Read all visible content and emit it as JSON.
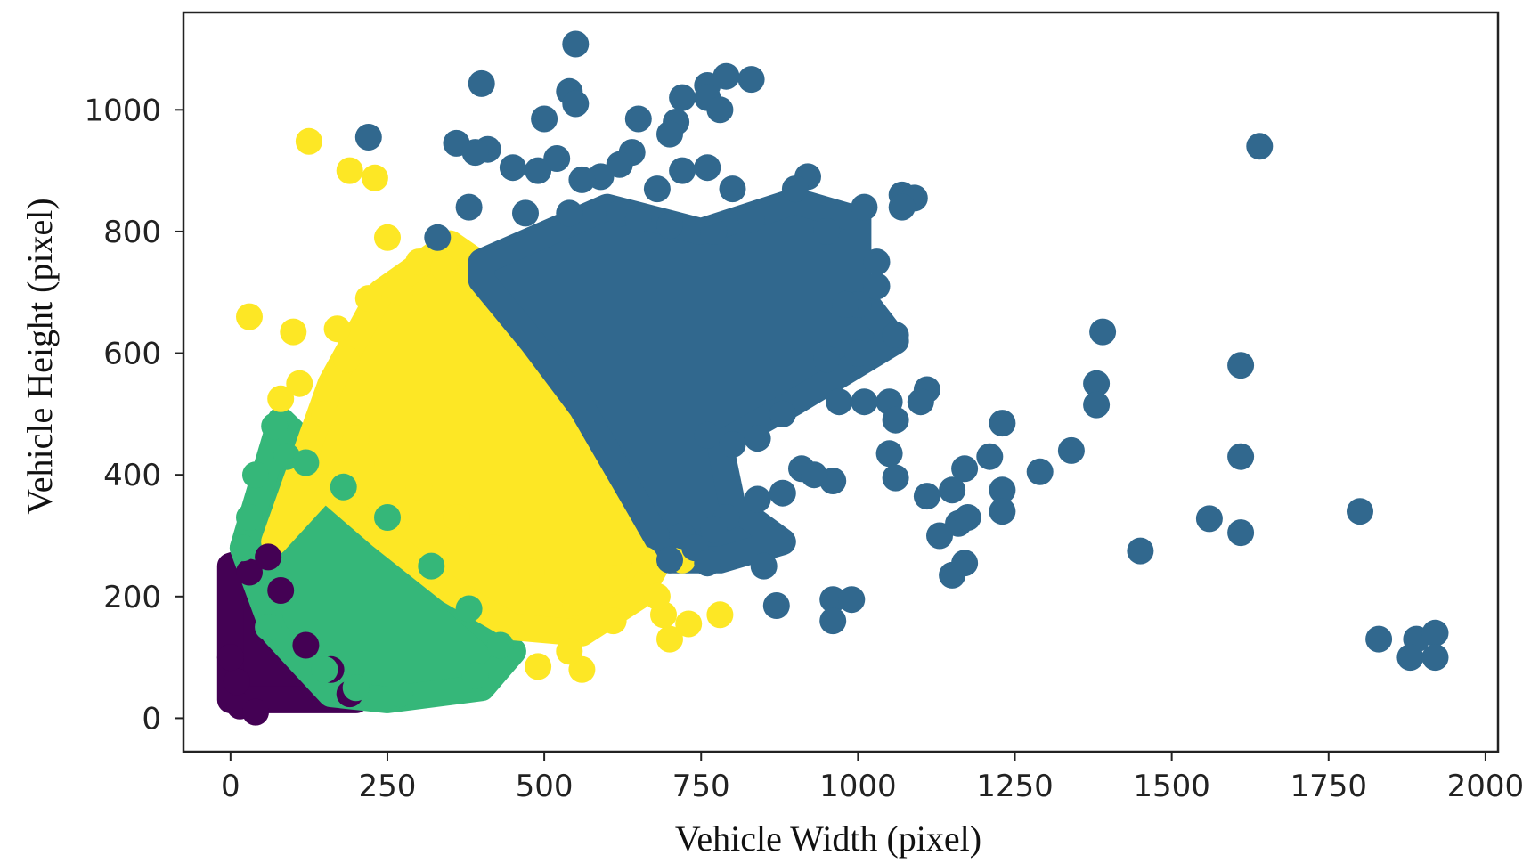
{
  "chart_data": {
    "type": "scatter",
    "title": "",
    "xlabel": "Vehicle Width (pixel)",
    "ylabel": "Vehicle Height (pixel)",
    "xlim": [
      -75,
      2020
    ],
    "ylim": [
      -55,
      1160
    ],
    "x_ticks": [
      0,
      250,
      500,
      750,
      1000,
      1250,
      1500,
      1750,
      2000
    ],
    "y_ticks": [
      0,
      200,
      400,
      600,
      800,
      1000
    ],
    "x_tick_labels": [
      "0",
      "250",
      "500",
      "750",
      "1000",
      "1250",
      "1500",
      "1750",
      "2000"
    ],
    "y_tick_labels": [
      "0",
      "200",
      "400",
      "600",
      "800",
      "1000"
    ],
    "grid": false,
    "legend": "none",
    "series": [
      {
        "color": "#440154",
        "shape": "triangle",
        "region": [
          [
            0,
            30
          ],
          [
            0,
            250
          ],
          [
            60,
            270
          ],
          [
            200,
            30
          ]
        ],
        "fill_estimate_count": 1200,
        "points": [
          [
            15,
            20
          ],
          [
            30,
            240
          ],
          [
            60,
            265
          ],
          [
            80,
            210
          ],
          [
            120,
            120
          ],
          [
            160,
            80
          ],
          [
            190,
            40
          ],
          [
            10,
            60
          ],
          [
            0,
            100
          ],
          [
            40,
            10
          ]
        ]
      },
      {
        "color": "#35b779",
        "shape": "band",
        "region": [
          [
            20,
            280
          ],
          [
            80,
            490
          ],
          [
            150,
            420
          ],
          [
            230,
            310
          ],
          [
            330,
            220
          ],
          [
            450,
            110
          ],
          [
            400,
            50
          ],
          [
            250,
            30
          ],
          [
            160,
            40
          ],
          [
            70,
            140
          ]
        ],
        "fill_estimate_count": 1600,
        "points": [
          [
            70,
            480
          ],
          [
            90,
            430
          ],
          [
            40,
            400
          ],
          [
            30,
            330
          ],
          [
            20,
            280
          ],
          [
            120,
            420
          ],
          [
            180,
            380
          ],
          [
            250,
            330
          ],
          [
            320,
            250
          ],
          [
            380,
            180
          ],
          [
            430,
            120
          ],
          [
            390,
            70
          ],
          [
            270,
            40
          ],
          [
            200,
            50
          ],
          [
            150,
            80
          ],
          [
            60,
            150
          ]
        ]
      },
      {
        "color": "#fde725",
        "shape": "band",
        "region": [
          [
            70,
            290
          ],
          [
            160,
            550
          ],
          [
            240,
            700
          ],
          [
            350,
            780
          ],
          [
            420,
            730
          ],
          [
            560,
            540
          ],
          [
            700,
            290
          ],
          [
            650,
            200
          ],
          [
            560,
            140
          ],
          [
            450,
            150
          ],
          [
            350,
            210
          ],
          [
            240,
            300
          ],
          [
            150,
            380
          ]
        ],
        "fill_estimate_count": 2500,
        "points": [
          [
            125,
            948
          ],
          [
            190,
            900
          ],
          [
            230,
            888
          ],
          [
            30,
            660
          ],
          [
            100,
            635
          ],
          [
            170,
            640
          ],
          [
            185,
            590
          ],
          [
            250,
            790
          ],
          [
            300,
            750
          ],
          [
            340,
            740
          ],
          [
            270,
            700
          ],
          [
            220,
            690
          ],
          [
            110,
            550
          ],
          [
            80,
            525
          ],
          [
            150,
            500
          ],
          [
            200,
            460
          ],
          [
            250,
            420
          ],
          [
            300,
            380
          ],
          [
            360,
            330
          ],
          [
            420,
            280
          ],
          [
            480,
            240
          ],
          [
            550,
            190
          ],
          [
            610,
            160
          ],
          [
            690,
            170
          ],
          [
            730,
            155
          ],
          [
            780,
            170
          ],
          [
            680,
            200
          ],
          [
            490,
            85
          ],
          [
            560,
            80
          ],
          [
            540,
            110
          ],
          [
            700,
            130
          ],
          [
            610,
            230
          ],
          [
            660,
            260
          ],
          [
            720,
            260
          ]
        ]
      },
      {
        "color": "#31688e",
        "shape": "cloud",
        "region": [
          [
            400,
            750
          ],
          [
            600,
            840
          ],
          [
            750,
            800
          ],
          [
            900,
            850
          ],
          [
            1000,
            820
          ],
          [
            1000,
            700
          ],
          [
            1060,
            620
          ],
          [
            900,
            520
          ],
          [
            780,
            450
          ],
          [
            800,
            350
          ],
          [
            880,
            290
          ],
          [
            780,
            260
          ],
          [
            700,
            260
          ],
          [
            650,
            350
          ],
          [
            560,
            510
          ],
          [
            480,
            620
          ],
          [
            400,
            720
          ]
        ],
        "fill_estimate_count": 2400,
        "points": [
          [
            550,
            1108
          ],
          [
            400,
            1043
          ],
          [
            540,
            1030
          ],
          [
            550,
            1010
          ],
          [
            500,
            985
          ],
          [
            220,
            955
          ],
          [
            360,
            945
          ],
          [
            410,
            935
          ],
          [
            390,
            930
          ],
          [
            650,
            985
          ],
          [
            790,
            1055
          ],
          [
            760,
            1040
          ],
          [
            830,
            1050
          ],
          [
            760,
            1020
          ],
          [
            780,
            1000
          ],
          [
            720,
            1020
          ],
          [
            710,
            980
          ],
          [
            700,
            960
          ],
          [
            640,
            930
          ],
          [
            620,
            910
          ],
          [
            520,
            920
          ],
          [
            490,
            900
          ],
          [
            450,
            905
          ],
          [
            590,
            890
          ],
          [
            560,
            885
          ],
          [
            680,
            870
          ],
          [
            720,
            900
          ],
          [
            760,
            905
          ],
          [
            800,
            870
          ],
          [
            920,
            890
          ],
          [
            900,
            870
          ],
          [
            1070,
            860
          ],
          [
            1090,
            855
          ],
          [
            1070,
            840
          ],
          [
            1010,
            840
          ],
          [
            330,
            790
          ],
          [
            380,
            840
          ],
          [
            470,
            830
          ],
          [
            540,
            830
          ],
          [
            620,
            830
          ],
          [
            650,
            820
          ],
          [
            700,
            810
          ],
          [
            770,
            800
          ],
          [
            830,
            820
          ],
          [
            950,
            800
          ],
          [
            1030,
            750
          ],
          [
            1030,
            710
          ],
          [
            1000,
            680
          ],
          [
            980,
            680
          ],
          [
            1060,
            630
          ],
          [
            1000,
            600
          ],
          [
            950,
            590
          ],
          [
            1390,
            635
          ],
          [
            1610,
            580
          ],
          [
            1380,
            550
          ],
          [
            1380,
            515
          ],
          [
            1110,
            540
          ],
          [
            1100,
            520
          ],
          [
            1050,
            520
          ],
          [
            1060,
            490
          ],
          [
            1010,
            520
          ],
          [
            970,
            520
          ],
          [
            880,
            500
          ],
          [
            840,
            460
          ],
          [
            800,
            450
          ],
          [
            760,
            465
          ],
          [
            1050,
            435
          ],
          [
            1230,
            485
          ],
          [
            1210,
            430
          ],
          [
            1170,
            410
          ],
          [
            1150,
            375
          ],
          [
            1230,
            375
          ],
          [
            1290,
            405
          ],
          [
            1340,
            440
          ],
          [
            1060,
            395
          ],
          [
            1110,
            365
          ],
          [
            960,
            390
          ],
          [
            910,
            410
          ],
          [
            930,
            400
          ],
          [
            880,
            370
          ],
          [
            840,
            360
          ],
          [
            790,
            330
          ],
          [
            770,
            310
          ],
          [
            720,
            300
          ],
          [
            740,
            280
          ],
          [
            700,
            260
          ],
          [
            760,
            255
          ],
          [
            850,
            250
          ],
          [
            1130,
            300
          ],
          [
            1160,
            320
          ],
          [
            1175,
            330
          ],
          [
            1230,
            340
          ],
          [
            1150,
            235
          ],
          [
            1170,
            255
          ],
          [
            1450,
            275
          ],
          [
            1560,
            328
          ],
          [
            1610,
            305
          ],
          [
            1610,
            430
          ],
          [
            1640,
            940
          ],
          [
            1800,
            340
          ],
          [
            1830,
            130
          ],
          [
            1890,
            130
          ],
          [
            1920,
            140
          ],
          [
            1880,
            100
          ],
          [
            1920,
            100
          ],
          [
            870,
            185
          ],
          [
            960,
            195
          ],
          [
            990,
            195
          ],
          [
            960,
            160
          ]
        ]
      }
    ]
  }
}
